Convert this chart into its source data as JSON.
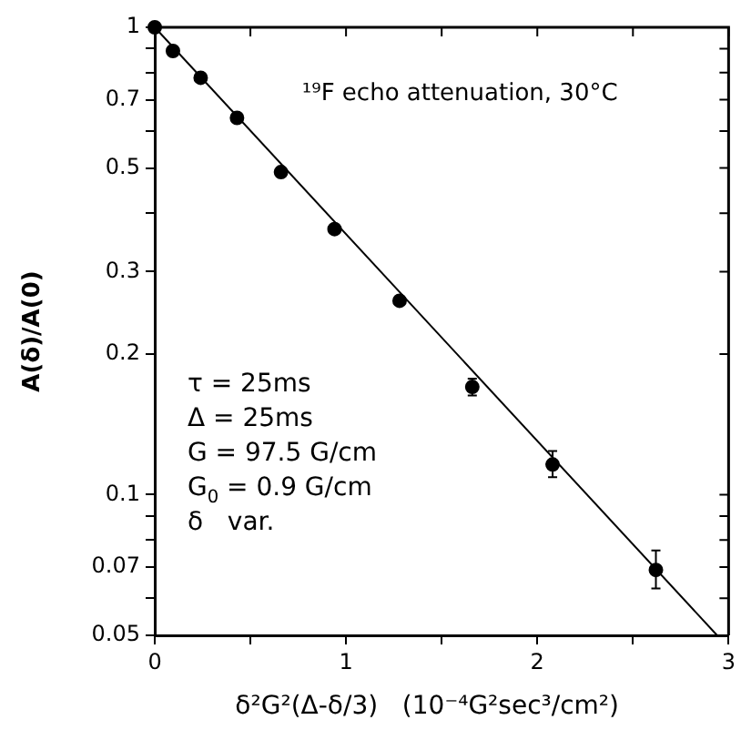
{
  "chart_data": {
    "type": "scatter",
    "title": "¹⁹F echo attenuation, 30°C",
    "xlabel": "δ²G²(Δ-δ/3)   (10⁻⁴G²sec³/cm²)",
    "ylabel": "A(δ)/A(0)",
    "annotations": [
      "τ = 25ms",
      "Δ = 25ms",
      "G = 97.5 G/cm",
      "G$_{0}$ = 0.9 G/cm",
      "δ   var."
    ],
    "series": [
      {
        "color": "#000000",
        "x": [
          0,
          0.095,
          0.24,
          0.43,
          0.66,
          0.94,
          1.28,
          1.66,
          2.08,
          2.62
        ],
        "values": [
          1,
          0.89,
          0.78,
          0.64,
          0.49,
          0.37,
          0.26,
          0.17,
          0.116,
          0.069
        ],
        "errors": [
          null,
          null,
          null,
          null,
          null,
          null,
          null,
          [
            0.163,
            0.177
          ],
          [
            0.109,
            0.124
          ],
          [
            0.063,
            0.076
          ]
        ]
      },
      {
        "type": "line",
        "marker": "none",
        "color": "#000000",
        "x": [
          0,
          2.94
        ],
        "values": [
          1,
          0.05
        ]
      }
    ],
    "xlim": [
      0,
      3
    ],
    "xticks": [
      0,
      {
        "value": 0.5,
        "label": null
      },
      1,
      {
        "value": 1.5,
        "label": null
      },
      2,
      {
        "value": 2.5,
        "label": null
      },
      3
    ],
    "ylim": [
      0.05,
      1
    ],
    "yticks": [
      0.05,
      {
        "value": 0.06,
        "label": null
      },
      0.07,
      {
        "value": 0.08,
        "label": null
      },
      {
        "value": 0.09,
        "label": null
      },
      0.1,
      0.2,
      0.3,
      {
        "value": 0.4,
        "label": null
      },
      0.5,
      {
        "value": 0.6,
        "label": null
      },
      0.7,
      {
        "value": 0.8,
        "label": null
      },
      {
        "value": 0.9,
        "label": null
      },
      1
    ],
    "log": "y",
    "grid": false,
    "legend": false,
    "marker": "circle",
    "line_style": "solid"
  }
}
